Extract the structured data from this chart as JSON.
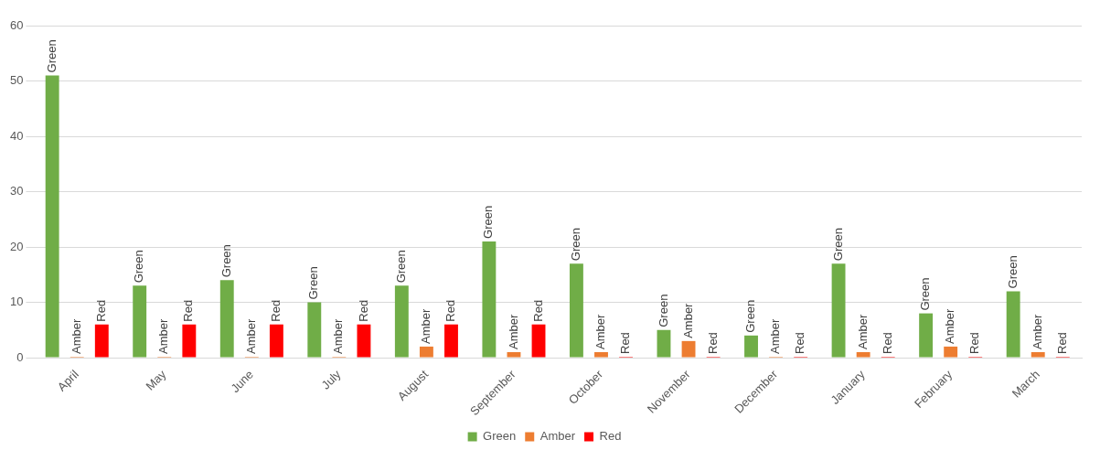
{
  "chart_data": {
    "type": "bar",
    "categories": [
      "April",
      "May",
      "June",
      "July",
      "August",
      "September",
      "October",
      "November",
      "December",
      "January",
      "February",
      "March"
    ],
    "series": [
      {
        "name": "Green",
        "color": "#70ad47",
        "values": [
          51,
          13,
          14,
          10,
          13,
          21,
          17,
          5,
          4,
          17,
          8,
          12
        ],
        "value_labels": [
          "Green",
          "Green",
          "Green",
          "Green",
          "Green",
          "Green",
          "Green",
          "Green",
          "Green",
          "Green",
          "Green",
          "Green"
        ]
      },
      {
        "name": "Amber",
        "color": "#ed7d31",
        "values": [
          0,
          0,
          0,
          0,
          2,
          1,
          1,
          3,
          0,
          1,
          2,
          1
        ],
        "value_labels": [
          "Amber",
          "Amber",
          "Amber",
          "Amber",
          "Amber",
          "Amber",
          "Amber",
          "Amber",
          "Amber",
          "Amber",
          "Amber",
          "Amber"
        ]
      },
      {
        "name": "Red",
        "color": "#ff0000",
        "values": [
          6,
          6,
          6,
          6,
          6,
          6,
          0,
          0,
          0,
          0,
          0,
          0
        ],
        "value_labels": [
          "Red",
          "Red",
          "Red",
          "Red",
          "Red",
          "Red",
          "Red",
          "Red",
          "Red",
          "Red",
          "Red",
          "Red"
        ]
      }
    ],
    "ylim": [
      0,
      60
    ],
    "yticks": [
      0,
      10,
      20,
      30,
      40,
      50,
      60
    ],
    "grid": "y",
    "legend": "bottom"
  }
}
